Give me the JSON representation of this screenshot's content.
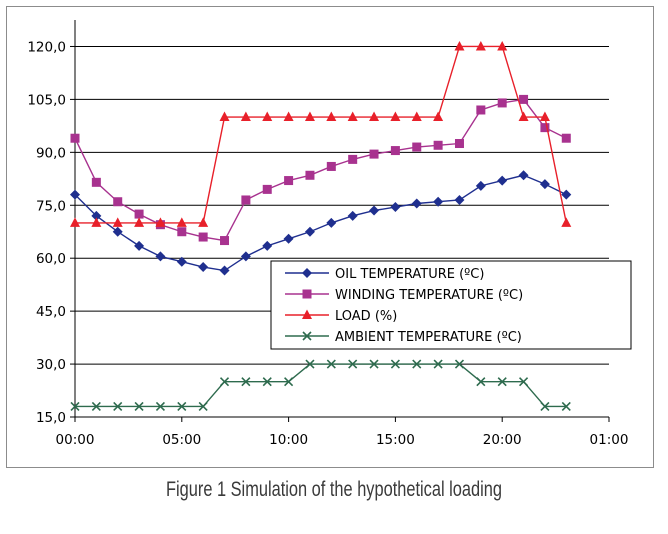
{
  "caption": "Figure 1  Simulation of the hypothetical loading",
  "chart_data": {
    "type": "line",
    "title": "",
    "xlabel": "",
    "ylabel": "",
    "grid": "horizontal",
    "legend_position": "center-right",
    "xlim": [
      0,
      25
    ],
    "ylim": [
      15,
      127.5
    ],
    "x_tick_values": [
      0,
      5,
      10,
      15,
      20,
      25
    ],
    "x_tick_labels": [
      "00:00",
      "05:00",
      "10:00",
      "15:00",
      "20:00",
      "01:00"
    ],
    "y_tick_values": [
      15,
      30,
      45,
      60,
      75,
      90,
      105,
      120
    ],
    "y_tick_labels": [
      "15,0",
      "30,0",
      "45,0",
      "60,0",
      "75,0",
      "90,0",
      "105,0",
      "120,0"
    ],
    "x": [
      0,
      1,
      2,
      3,
      4,
      5,
      6,
      7,
      8,
      9,
      10,
      11,
      12,
      13,
      14,
      15,
      16,
      17,
      18,
      19,
      20,
      21,
      22,
      23
    ],
    "series": [
      {
        "name": "OIL TEMPERATURE (ºC)",
        "color": "#1f2f8f",
        "marker": "diamond",
        "values": [
          78,
          72,
          67.5,
          63.5,
          60.5,
          59,
          57.5,
          56.5,
          60.5,
          63.5,
          65.5,
          67.5,
          70,
          72,
          73.5,
          74.5,
          75.5,
          76,
          76.5,
          80.5,
          82,
          83.5,
          81,
          78
        ]
      },
      {
        "name": "WINDING TEMPERATURE (ºC)",
        "color": "#a8328f",
        "marker": "square",
        "values": [
          94,
          81.5,
          76,
          72.5,
          69.5,
          67.5,
          66,
          65,
          76.5,
          79.5,
          82,
          83.5,
          86,
          88,
          89.5,
          90.5,
          91.5,
          92,
          92.5,
          102,
          104,
          105,
          97,
          94
        ]
      },
      {
        "name": "LOAD (%)",
        "color": "#e8202a",
        "marker": "triangle",
        "values": [
          70,
          70,
          70,
          70,
          70,
          70,
          70,
          100,
          100,
          100,
          100,
          100,
          100,
          100,
          100,
          100,
          100,
          100,
          120,
          120,
          120,
          100,
          100,
          70
        ]
      },
      {
        "name": "AMBIENT TEMPERATURE (ºC)",
        "color": "#2e6b4e",
        "marker": "x",
        "values": [
          18,
          18,
          18,
          18,
          18,
          18,
          18,
          25,
          25,
          25,
          25,
          30,
          30,
          30,
          30,
          30,
          30,
          30,
          30,
          25,
          25,
          25,
          18,
          18
        ]
      }
    ]
  }
}
